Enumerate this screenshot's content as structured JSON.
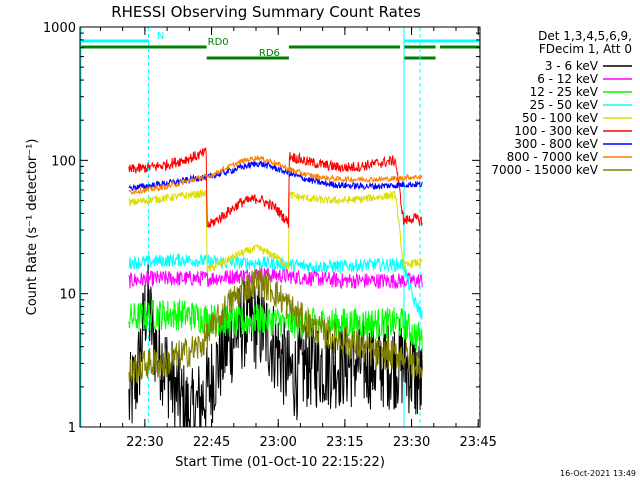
{
  "chart_data": {
    "type": "line",
    "title": "RHESSI Observing Summary Count Rates",
    "xlabel": "Start Time (01-Oct-10 22:15:22)",
    "ylabel": "Count Rate (s⁻¹ detector⁻¹)",
    "yscale": "log",
    "ylim": [
      1,
      1000
    ],
    "xlim": [
      0,
      90
    ],
    "x_unit": "minutes since 22:15:22",
    "x_ticks": [
      {
        "label": "22:30",
        "value": 14.6
      },
      {
        "label": "22:45",
        "value": 29.6
      },
      {
        "label": "23:00",
        "value": 44.6
      },
      {
        "label": "23:15",
        "value": 59.6
      },
      {
        "label": "23:30",
        "value": 74.6
      },
      {
        "label": "23:45",
        "value": 89.6
      }
    ],
    "y_ticks": [
      {
        "label": "1",
        "value": 1
      },
      {
        "label": "10",
        "value": 10
      },
      {
        "label": "100",
        "value": 100
      },
      {
        "label": "1000",
        "value": 1000
      }
    ],
    "legend_position": "top-right",
    "legend_header": [
      "Det 1,3,4,5,6,9,",
      "FDecim 1, Att 0"
    ],
    "timestamp": "16-Oct-2021 13:49",
    "flags": [
      {
        "label": "N",
        "color": "#00ffff",
        "segments": [
          [
            0,
            15.5
          ],
          [
            73,
            90
          ]
        ],
        "level": 0
      },
      {
        "label": "RD0",
        "color": "#008000",
        "segments": [
          [
            0,
            28.5
          ],
          [
            47,
            72
          ],
          [
            73,
            80
          ],
          [
            81,
            90
          ]
        ],
        "level": 1
      },
      {
        "label": "RD6",
        "color": "#008000",
        "segments": [
          [
            28.5,
            47
          ],
          [
            73,
            80
          ]
        ],
        "level": 2
      }
    ],
    "vlines": [
      {
        "x": 0,
        "color": "#00ffff",
        "dashed": false
      },
      {
        "x": 15.4,
        "color": "#00ffff",
        "dashed": true
      },
      {
        "x": 72.9,
        "color": "#00ffff",
        "dashed": false
      },
      {
        "x": 76.5,
        "color": "#00ffff",
        "dashed": true
      },
      {
        "x": 89.9,
        "color": "#00ffff",
        "dashed": true
      }
    ],
    "series": [
      {
        "name": "3 - 6 keV",
        "color": "#000000",
        "x": [
          11,
          13,
          15,
          17,
          19,
          21,
          23,
          25,
          27,
          29,
          31,
          33,
          35,
          37,
          39,
          41,
          43,
          45,
          47,
          49,
          51,
          53,
          55,
          57,
          59,
          61,
          63,
          65,
          67,
          69,
          71,
          72.8,
          75,
          77
        ],
        "y": [
          1.5,
          2.5,
          9,
          4,
          3,
          2,
          1.5,
          1.2,
          1.5,
          2,
          3,
          4,
          5,
          6,
          6,
          5.5,
          4.5,
          3.5,
          2.5,
          2.5,
          3,
          3,
          3,
          3,
          3,
          3,
          3,
          3,
          3,
          3,
          3,
          3,
          2.5,
          2
        ]
      },
      {
        "name": "6 - 12 keV",
        "color": "#ff00ff",
        "x": [
          11,
          17,
          23,
          29,
          35,
          41,
          47,
          53,
          59,
          65,
          71,
          72.8,
          75,
          77
        ],
        "y": [
          12.5,
          13,
          13,
          13,
          13.5,
          14,
          13.5,
          13,
          12.5,
          12.5,
          12.5,
          12.5,
          12.5,
          12.5
        ]
      },
      {
        "name": "12 - 25 keV",
        "color": "#00ff00",
        "x": [
          11,
          17,
          23,
          29,
          35,
          41,
          47,
          53,
          59,
          65,
          71,
          72.8,
          75,
          77
        ],
        "y": [
          6.5,
          7,
          7,
          6.5,
          6,
          6.5,
          6,
          6,
          6,
          6,
          6,
          6,
          5,
          4.5
        ]
      },
      {
        "name": "25 - 50 keV",
        "color": "#00ffff",
        "x": [
          11,
          17,
          23,
          29,
          35,
          41,
          47,
          53,
          59,
          65,
          71,
          72.8,
          75,
          77
        ],
        "y": [
          17,
          17.5,
          18,
          17.5,
          17,
          17,
          16.5,
          16,
          16,
          16.5,
          16.5,
          16.5,
          9,
          7
        ]
      },
      {
        "name": "50 - 100 keV",
        "color": "#dddd00",
        "x": [
          11,
          15,
          19,
          23,
          27,
          28.4,
          28.6,
          32,
          36,
          40,
          44,
          46.9,
          47.1,
          51,
          55,
          59,
          63,
          67,
          71,
          72.8,
          75,
          77
        ],
        "y": [
          48,
          50,
          52,
          54,
          56,
          56,
          15,
          17,
          20,
          22,
          19,
          16,
          55,
          52,
          50,
          50,
          51,
          53,
          55,
          16,
          17,
          17
        ]
      },
      {
        "name": "100 - 300 keV",
        "color": "#ff0000",
        "x": [
          11,
          15,
          19,
          23,
          27,
          28.4,
          28.6,
          32,
          36,
          40,
          44,
          46.9,
          47.1,
          51,
          55,
          59,
          63,
          67,
          71,
          72.8,
          75,
          77
        ],
        "y": [
          85,
          88,
          92,
          100,
          110,
          115,
          32,
          38,
          48,
          52,
          44,
          34,
          108,
          98,
          92,
          88,
          90,
          95,
          100,
          35,
          37,
          35
        ]
      },
      {
        "name": "300 - 800 keV",
        "color": "#0000ff",
        "x": [
          11,
          15,
          19,
          23,
          27,
          29,
          33,
          37,
          40,
          43,
          47,
          51,
          55,
          59,
          63,
          67,
          71,
          72.8,
          75,
          77
        ],
        "y": [
          62,
          64,
          67,
          70,
          74,
          75,
          82,
          90,
          95,
          90,
          80,
          72,
          67,
          65,
          64,
          64,
          65,
          66,
          66,
          66
        ]
      },
      {
        "name": "800 - 7000 keV",
        "color": "#ff8000",
        "x": [
          11,
          15,
          19,
          23,
          27,
          29,
          33,
          37,
          40,
          43,
          47,
          51,
          55,
          59,
          63,
          67,
          71,
          72.8,
          75,
          77
        ],
        "y": [
          58,
          60,
          63,
          68,
          74,
          76,
          88,
          100,
          105,
          98,
          86,
          78,
          74,
          72,
          72,
          72,
          73,
          74,
          75,
          75
        ]
      },
      {
        "name": "7000 - 15000 keV",
        "color": "#808000",
        "x": [
          11,
          15,
          19,
          23,
          27,
          29,
          33,
          37,
          40,
          43,
          47,
          51,
          55,
          59,
          63,
          67,
          71,
          72.8,
          75,
          77
        ],
        "y": [
          2.5,
          3,
          3,
          3.5,
          4,
          5,
          8,
          11,
          12.5,
          11,
          8,
          6,
          5,
          4.5,
          4,
          3.5,
          3.5,
          3.5,
          3,
          3
        ]
      }
    ]
  }
}
